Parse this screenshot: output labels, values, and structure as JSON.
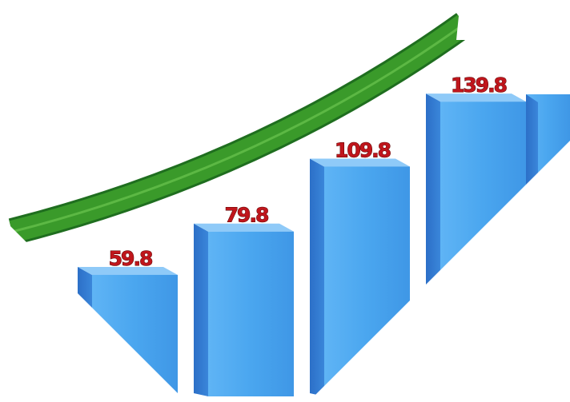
{
  "chart_data": {
    "type": "bar",
    "values": [
      59.8,
      79.8,
      109.8,
      139.8
    ],
    "color": "#4aa6ef"
  }
}
